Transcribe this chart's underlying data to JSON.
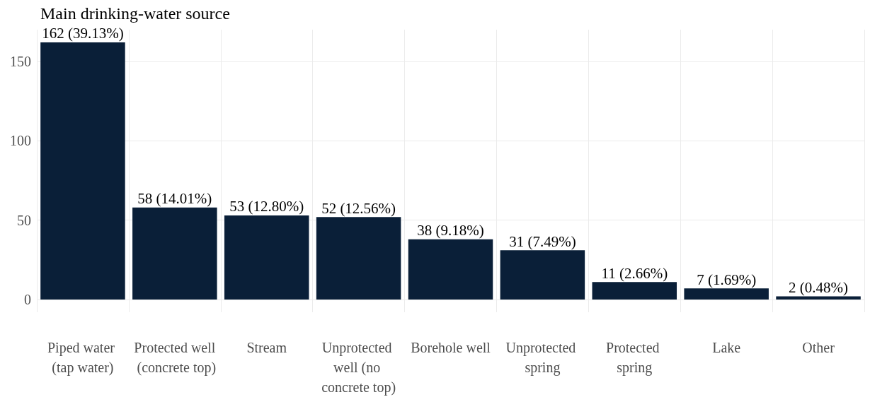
{
  "chart_data": {
    "type": "bar",
    "title": "Main drinking-water source",
    "categories": [
      "Piped water (tap water)",
      "Protected well (concrete top)",
      "Stream",
      "Unprotected well (no concrete top)",
      "Borehole well",
      "Unprotected spring",
      "Protected spring",
      "Lake",
      "Other"
    ],
    "values": [
      162,
      58,
      53,
      52,
      38,
      31,
      11,
      7,
      2
    ],
    "value_labels": [
      "162 (39.13%)",
      "58 (14.01%)",
      "53 (12.80%)",
      "52 (12.56%)",
      "38 (9.18%)",
      "31 (7.49%)",
      "11 (2.66%)",
      "7 (1.69%)",
      "2 (0.48%)"
    ],
    "color": "#0a1f38",
    "ylim": [
      -8,
      170
    ],
    "yticks": [
      0,
      50,
      100,
      150
    ],
    "grid": true
  }
}
